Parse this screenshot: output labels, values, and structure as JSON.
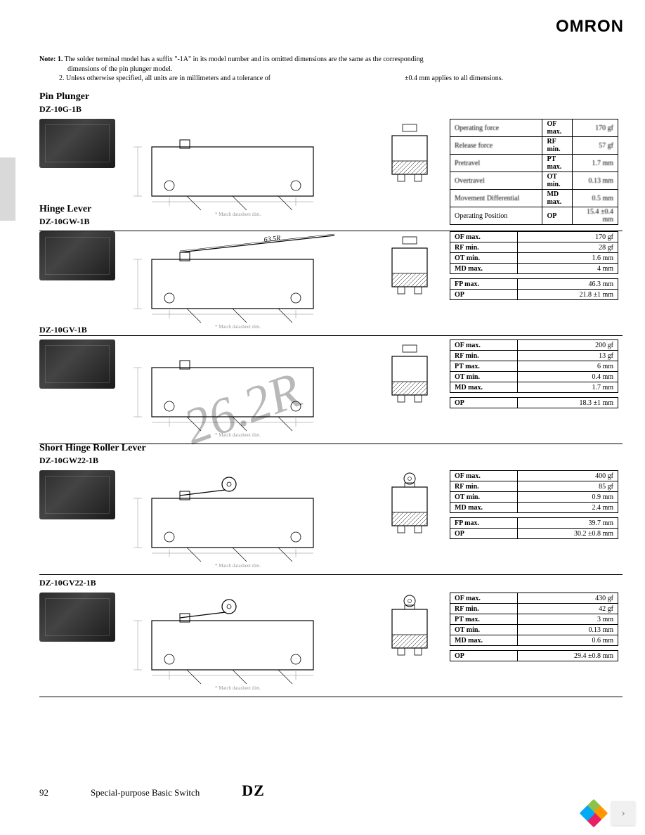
{
  "brand": "OMRON",
  "notes": {
    "lead": "Note: 1.",
    "n1": "The solder terminal model has a suffix \"-1A\" in its model number and its omitted dimensions are the same as the corresponding",
    "n1b": "dimensions of the pin plunger model.",
    "n2lead": "2.",
    "n2": "Unless otherwise specified, all units are in millimeters and a tolerance of",
    "tolerance": "±0.4 mm applies to all dimensions."
  },
  "watermark": "26.2R",
  "sections": [
    {
      "title": "Pin Plunger",
      "model": "DZ-10G-1B",
      "lever_label": "",
      "table_full": true,
      "rows": [
        {
          "label": "Operating force",
          "abbr": "OF max.",
          "val": "170 gf"
        },
        {
          "label": "Release force",
          "abbr": "RF min.",
          "val": "57 gf"
        },
        {
          "label": "Pretravel",
          "abbr": "PT max.",
          "val": "1.7 mm"
        },
        {
          "label": "Overtravel",
          "abbr": "OT min.",
          "val": "0.13 mm"
        },
        {
          "label": "Movement Differential",
          "abbr": "MD max.",
          "val": "0.5 mm"
        }
      ],
      "op_row": {
        "label": "Operating Position",
        "abbr": "OP",
        "val": "15.4 ±0.4 mm"
      }
    },
    {
      "title": "Hinge Lever",
      "model": "DZ-10GW-1B",
      "lever_label": "63.5R",
      "rows": [
        {
          "abbr": "OF max.",
          "val": "170 gf"
        },
        {
          "abbr": "RF min.",
          "val": "28 gf"
        },
        {
          "abbr": "OT min.",
          "val": "1.6 mm"
        },
        {
          "abbr": "MD max.",
          "val": "4 mm"
        }
      ],
      "split_rows": [
        {
          "abbr": "FP max.",
          "val": "46.3 mm"
        },
        {
          "abbr": "OP",
          "val": "21.8  ±1 mm"
        }
      ]
    },
    {
      "title": "",
      "model": "DZ-10GV-1B",
      "lever_label": "",
      "rows": [
        {
          "abbr": "OF max.",
          "val": "200 gf"
        },
        {
          "abbr": "RF min.",
          "val": "13 gf"
        },
        {
          "abbr": "PT max.",
          "val": "6 mm"
        },
        {
          "abbr": "OT min.",
          "val": "0.4 mm"
        },
        {
          "abbr": "MD max.",
          "val": "1.7 mm"
        }
      ],
      "split_rows": [
        {
          "abbr": "OP",
          "val": "18.3  ±1 mm"
        }
      ]
    },
    {
      "title": "Short Hinge Roller Lever",
      "model": "DZ-10GW22-1B",
      "lever_label": "",
      "rows": [
        {
          "abbr": "OF max.",
          "val": "400 gf"
        },
        {
          "abbr": "RF min.",
          "val": "85 gf"
        },
        {
          "abbr": "OT min.",
          "val": "0.9 mm"
        },
        {
          "abbr": "MD max.",
          "val": "2.4 mm"
        }
      ],
      "split_rows": [
        {
          "abbr": "FP max.",
          "val": "39.7 mm"
        },
        {
          "abbr": "OP",
          "val": "30.2  ±0.8 mm"
        }
      ]
    },
    {
      "title": "",
      "model": "DZ-10GV22-1B",
      "lever_label": "",
      "rows": [
        {
          "abbr": "OF max.",
          "val": "430 gf"
        },
        {
          "abbr": "RF min.",
          "val": "42 gf"
        },
        {
          "abbr": "PT max.",
          "val": "3 mm"
        },
        {
          "abbr": "OT min.",
          "val": "0.13 mm"
        },
        {
          "abbr": "MD max.",
          "val": "0.6 mm"
        }
      ],
      "split_rows": [
        {
          "abbr": "OP",
          "val": "29.4  ±0.8 mm"
        }
      ]
    }
  ],
  "footer": {
    "page": "92",
    "text": "Special-purpose Basic Switch",
    "code": "DZ"
  },
  "section_tops": [
    130,
    290,
    460,
    630,
    820
  ],
  "drawing": {
    "body_stroke": "#000000",
    "stroke_width": 0.8,
    "dim_color": "#888888"
  }
}
